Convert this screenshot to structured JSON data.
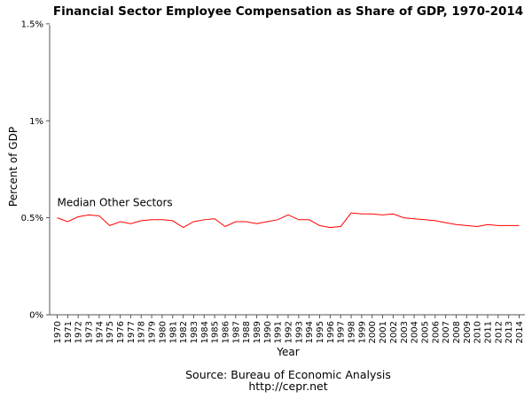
{
  "chart_data": {
    "type": "line",
    "title": "Financial Sector Employee Compensation as Share of GDP, 1970-2014",
    "xlabel": "Year",
    "ylabel": "Percent of GDP",
    "ylim": [
      0,
      1.6
    ],
    "y_ticks": [
      {
        "value": 0,
        "label": "0%"
      },
      {
        "value": 0.5,
        "label": "0.5%"
      },
      {
        "value": 1.0,
        "label": "1%"
      },
      {
        "value": 1.5,
        "label": "1.5%"
      }
    ],
    "x": [
      1970,
      1971,
      1972,
      1973,
      1974,
      1975,
      1976,
      1977,
      1978,
      1979,
      1980,
      1981,
      1982,
      1983,
      1984,
      1985,
      1986,
      1987,
      1988,
      1989,
      1990,
      1991,
      1992,
      1993,
      1994,
      1995,
      1996,
      1997,
      1998,
      1999,
      2000,
      2001,
      2002,
      2003,
      2004,
      2005,
      2006,
      2007,
      2008,
      2009,
      2010,
      2011,
      2012,
      2013,
      2014
    ],
    "series": [
      {
        "color": "#ff0000",
        "values": [
          0.5,
          0.48,
          0.505,
          0.515,
          0.51,
          0.46,
          0.48,
          0.47,
          0.485,
          0.49,
          0.49,
          0.485,
          0.45,
          0.48,
          0.49,
          0.495,
          0.455,
          0.48,
          0.48,
          0.47,
          0.48,
          0.49,
          0.515,
          0.49,
          0.49,
          0.46,
          0.45,
          0.455,
          0.525,
          0.52,
          0.52,
          0.515,
          0.52,
          0.5,
          0.495,
          0.49,
          0.485,
          0.475,
          0.465,
          0.46,
          0.455,
          0.465,
          0.46,
          0.46,
          0.46
        ]
      }
    ],
    "annotations": [
      {
        "text": "Median Other Sectors",
        "x": 1970,
        "y": 0.56
      }
    ],
    "grid": false
  },
  "source_line": "Source: Bureau of Economic Analysis",
  "url_line": "http://cepr.net"
}
